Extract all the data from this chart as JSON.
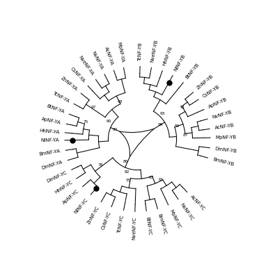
{
  "background_color": "#ffffff",
  "figsize": [
    3.95,
    4.0
  ],
  "dpi": 100,
  "xlim": [
    -1.55,
    1.55
  ],
  "ylim": [
    -1.55,
    1.55
  ],
  "lw": 0.75,
  "label_fs": 5.0,
  "bs_fs": 4.2,
  "r_tip_inner": 0.74,
  "r_tip_outer": 0.82,
  "r_label": 0.88,
  "yb_tips": {
    "TcNF-YB": 88,
    "NveNF-YB": 79,
    "HhNF-YB": 70,
    "NlNF-YB": 61,
    "BtNF-YB": 51,
    "ZnNF-YB": 40,
    "CsNF-YB": 33,
    "ApNF-YB": 24,
    "NvNF-YB": 16,
    "AcNF-YB": 8,
    "MpNF-YB": 1,
    "DmNF-YB": 353,
    "BmNF-YB": 345
  },
  "yb_black_dot": "NlNF-YB",
  "ya_tips": {
    "MpNF-YA": 101,
    "AcNF-YA": 109,
    "NvNF-YA": 117,
    "NveNF-YA": 125,
    "CsNF-YA": 133,
    "ZnNF-YA": 141,
    "TcNF-YA": 151,
    "BtNF-YA": 160,
    "ApNF-YA": 168,
    "HhNF-YA": 175,
    "NlNF-YA": 181,
    "BmNF-YA": 189,
    "DmNF-YA": 197
  },
  "ya_black_dot": "NlNF-YA",
  "yc_tips": {
    "DmNF-YC": 205,
    "HhNF-YC": 213,
    "ApNF-YC": 221,
    "NlNF-YC": 230,
    "ZnNF-YC": 240,
    "CsNF-YC": 249,
    "TcNF-YC": 259,
    "NveNF-YC": 268,
    "BtNF-YC": 277,
    "BmNF-YC": 286,
    "MpNF-YC": 295,
    "NvNF-YC": 304,
    "AcNF-YC": 313
  },
  "yc_black_dot": "NlNF-YC"
}
